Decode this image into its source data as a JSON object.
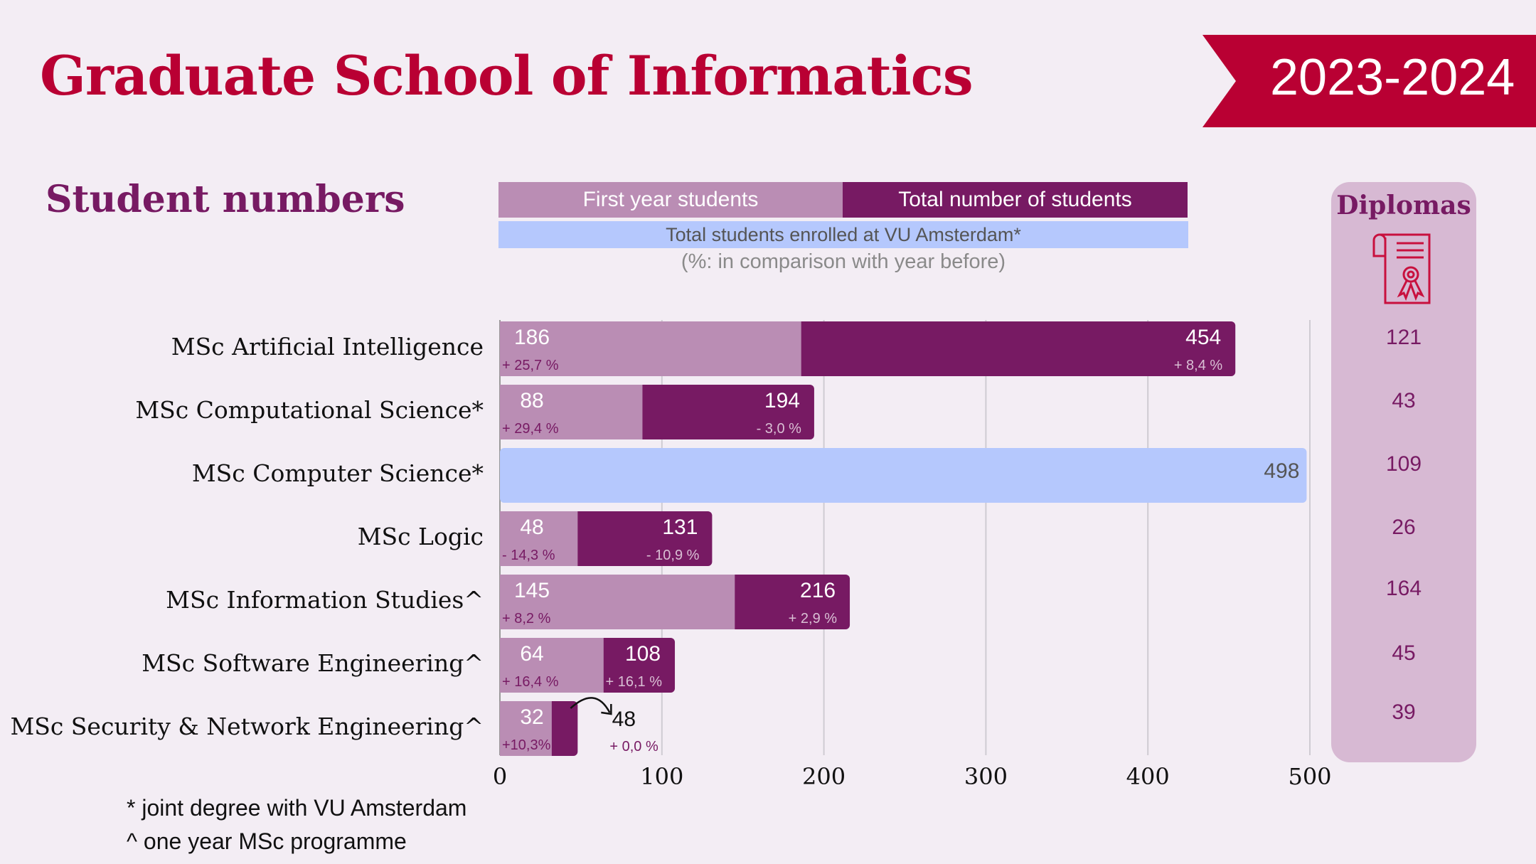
{
  "header": {
    "title": "Graduate School of Informatics",
    "year": "2023-2024"
  },
  "section": {
    "title": "Student numbers"
  },
  "legend": {
    "first_year": "First year students",
    "total": "Total number of students",
    "vu_total": "Total students enrolled at VU Amsterdam*",
    "note": "(%: in comparison with year before)"
  },
  "colors": {
    "first_year": "#ba8db4",
    "total": "#771a63",
    "vu_total": "#b5c8fd",
    "brand_red": "#b90033",
    "diplomas_panel": "#d7b9d3",
    "background": "#f3edf4"
  },
  "diplomas": {
    "title": "Diplomas",
    "icon": "diploma-certificate-icon",
    "values": [
      "121",
      "43",
      "109",
      "26",
      "164",
      "45",
      "39"
    ]
  },
  "footnotes": [
    "* joint degree with VU Amsterdam",
    "^ one year MSc programme"
  ],
  "chart_data": {
    "type": "bar",
    "orientation": "horizontal",
    "title": "Student numbers",
    "xlabel": "",
    "ylabel": "",
    "xlim": [
      0,
      500
    ],
    "x_ticks": [
      "0",
      "100",
      "200",
      "300",
      "400",
      "500"
    ],
    "grid": true,
    "legend": "top",
    "categories": [
      "MSc Artificial Intelligence",
      "MSc Computational Science*",
      "MSc Computer Science*",
      "MSc Logic",
      "MSc Information Studies^",
      "MSc Software Engineering^",
      "MSc Security & Network Engineering^"
    ],
    "series": [
      {
        "name": "First year students",
        "values": [
          186,
          88,
          null,
          48,
          145,
          64,
          32
        ],
        "change_labels": [
          "+ 25,7 %",
          "+ 29,4 %",
          null,
          "- 14,3 %",
          "+ 8,2 %",
          "+ 16,4 %",
          "+10,3%"
        ]
      },
      {
        "name": "Total number of students",
        "values": [
          454,
          194,
          null,
          131,
          216,
          108,
          48
        ],
        "change_labels": [
          "+ 8,4 %",
          "- 3,0 %",
          null,
          "- 10,9 %",
          "+ 2,9 %",
          "+ 16,1 %",
          "+ 0,0 %"
        ]
      },
      {
        "name": "Total students enrolled at VU Amsterdam*",
        "values": [
          null,
          null,
          498,
          null,
          null,
          null,
          null
        ],
        "change_labels": [
          null,
          null,
          null,
          null,
          null,
          null,
          null
        ]
      }
    ],
    "annotations": [
      {
        "category": "MSc Security & Network Engineering^",
        "type": "curved-arrow",
        "text": "48",
        "note": "label placed outside bar"
      }
    ]
  }
}
